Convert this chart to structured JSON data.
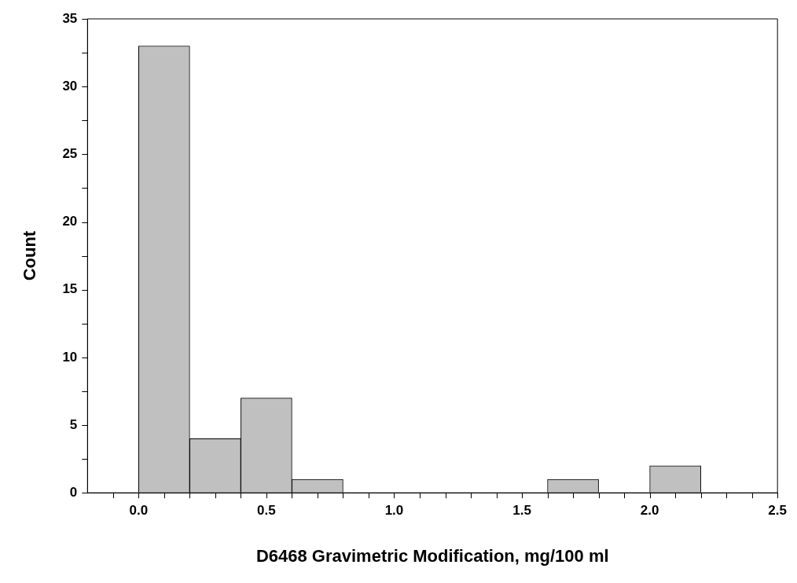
{
  "chart_data": {
    "type": "histogram",
    "xlabel": "D6468 Gravimetric Modification, mg/100 ml",
    "ylabel": "Count",
    "bins": [
      0,
      0.2,
      0.4,
      0.6,
      0.8,
      1.0,
      1.2,
      1.4,
      1.6,
      1.8,
      2.0,
      2.2
    ],
    "values": [
      33,
      4,
      7,
      1,
      0,
      0,
      0,
      0,
      1,
      0,
      2
    ],
    "color": "#c0c0c0",
    "xlim": [
      -0.2,
      2.5
    ],
    "xticks": [
      {
        "value": -0.1,
        "label": null
      },
      {
        "value": 0,
        "label": "0.0"
      },
      {
        "value": 0.1,
        "label": null
      },
      {
        "value": 0.2,
        "label": null
      },
      {
        "value": 0.3,
        "label": null
      },
      {
        "value": 0.4,
        "label": null
      },
      0.5,
      {
        "value": 0.6,
        "label": null
      },
      {
        "value": 0.7,
        "label": null
      },
      {
        "value": 0.8,
        "label": null
      },
      {
        "value": 0.9,
        "label": null
      },
      {
        "value": 1,
        "label": "1.0"
      },
      {
        "value": 1.1,
        "label": null
      },
      {
        "value": 1.2,
        "label": null
      },
      {
        "value": 1.3,
        "label": null
      },
      {
        "value": 1.4,
        "label": null
      },
      1.5,
      {
        "value": 1.6,
        "label": null
      },
      {
        "value": 1.7,
        "label": null
      },
      {
        "value": 1.8,
        "label": null
      },
      {
        "value": 1.9,
        "label": null
      },
      {
        "value": 2,
        "label": "2.0"
      },
      {
        "value": 2.1,
        "label": null
      },
      {
        "value": 2.2,
        "label": null
      },
      {
        "value": 2.3,
        "label": null
      },
      {
        "value": 2.4,
        "label": null
      },
      2.5
    ],
    "ylim": [
      0,
      35
    ],
    "yticks": [
      0,
      {
        "value": 2.5,
        "label": null
      },
      5,
      {
        "value": 7.5,
        "label": null
      },
      10,
      {
        "value": 12.5,
        "label": null
      },
      15,
      {
        "value": 17.5,
        "label": null
      },
      20,
      {
        "value": 22.5,
        "label": null
      },
      25,
      {
        "value": 27.5,
        "label": null
      },
      30,
      {
        "value": 32.5,
        "label": null
      },
      35
    ],
    "grid": false,
    "legend": false
  }
}
